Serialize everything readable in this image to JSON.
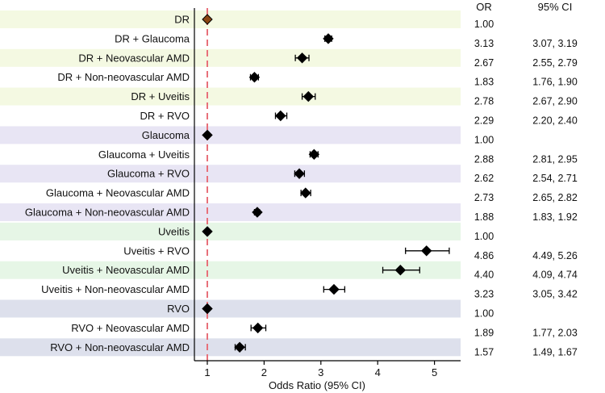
{
  "chart_data": {
    "type": "forest",
    "xlabel": "Odds Ratio (95% CI)",
    "xlim": [
      0.8,
      5.5
    ],
    "xticks": [
      1,
      2,
      3,
      4,
      5
    ],
    "reference_line": 1,
    "column_headers": {
      "or": "OR",
      "ci": "95% CI"
    },
    "group_colors": {
      "DR": "#f4f9e2",
      "Glaucoma": "#e8e5f4",
      "Uveitis": "#e6f6e6",
      "RVO": "#dde0ec"
    },
    "marker_color": "#000000",
    "reference_first_marker_color": "#8b4513",
    "reference_line_color": "#e8707a",
    "rows": [
      {
        "label": "DR",
        "group": "DR",
        "shaded": true,
        "or": 1.0,
        "lo": null,
        "hi": null,
        "or_text": "1.00",
        "ci_text": ""
      },
      {
        "label": "DR + Glaucoma",
        "group": "DR",
        "shaded": false,
        "or": 3.13,
        "lo": 3.07,
        "hi": 3.19,
        "or_text": "3.13",
        "ci_text": "3.07, 3.19"
      },
      {
        "label": "DR + Neovascular AMD",
        "group": "DR",
        "shaded": true,
        "or": 2.67,
        "lo": 2.55,
        "hi": 2.79,
        "or_text": "2.67",
        "ci_text": "2.55, 2.79"
      },
      {
        "label": "DR + Non-neovascular AMD",
        "group": "DR",
        "shaded": false,
        "or": 1.83,
        "lo": 1.76,
        "hi": 1.9,
        "or_text": "1.83",
        "ci_text": "1.76, 1.90"
      },
      {
        "label": "DR + Uveitis",
        "group": "DR",
        "shaded": true,
        "or": 2.78,
        "lo": 2.67,
        "hi": 2.9,
        "or_text": "2.78",
        "ci_text": "2.67, 2.90"
      },
      {
        "label": "DR + RVO",
        "group": "DR",
        "shaded": false,
        "or": 2.29,
        "lo": 2.2,
        "hi": 2.4,
        "or_text": "2.29",
        "ci_text": "2.20, 2.40"
      },
      {
        "label": "Glaucoma",
        "group": "Glaucoma",
        "shaded": true,
        "or": 1.0,
        "lo": null,
        "hi": null,
        "or_text": "1.00",
        "ci_text": ""
      },
      {
        "label": "Glaucoma + Uveitis",
        "group": "Glaucoma",
        "shaded": false,
        "or": 2.88,
        "lo": 2.81,
        "hi": 2.95,
        "or_text": "2.88",
        "ci_text": "2.81, 2.95"
      },
      {
        "label": "Glaucoma + RVO",
        "group": "Glaucoma",
        "shaded": true,
        "or": 2.62,
        "lo": 2.54,
        "hi": 2.71,
        "or_text": "2.62",
        "ci_text": "2.54, 2.71"
      },
      {
        "label": "Glaucoma + Neovascular AMD",
        "group": "Glaucoma",
        "shaded": false,
        "or": 2.73,
        "lo": 2.65,
        "hi": 2.82,
        "or_text": "2.73",
        "ci_text": "2.65, 2.82"
      },
      {
        "label": "Glaucoma + Non-neovascular AMD",
        "group": "Glaucoma",
        "shaded": true,
        "or": 1.88,
        "lo": 1.83,
        "hi": 1.92,
        "or_text": "1.88",
        "ci_text": "1.83, 1.92"
      },
      {
        "label": "Uveitis",
        "group": "Uveitis",
        "shaded": true,
        "or": 1.0,
        "lo": null,
        "hi": null,
        "or_text": "1.00",
        "ci_text": ""
      },
      {
        "label": "Uveitis + RVO",
        "group": "Uveitis",
        "shaded": false,
        "or": 4.86,
        "lo": 4.49,
        "hi": 5.26,
        "or_text": "4.86",
        "ci_text": "4.49, 5.26"
      },
      {
        "label": "Uveitis + Neovascular AMD",
        "group": "Uveitis",
        "shaded": true,
        "or": 4.4,
        "lo": 4.09,
        "hi": 4.74,
        "or_text": "4.40",
        "ci_text": "4.09, 4.74"
      },
      {
        "label": "Uveitis + Non-neovascular AMD",
        "group": "Uveitis",
        "shaded": false,
        "or": 3.23,
        "lo": 3.05,
        "hi": 3.42,
        "or_text": "3.23",
        "ci_text": "3.05, 3.42"
      },
      {
        "label": "RVO",
        "group": "RVO",
        "shaded": true,
        "or": 1.0,
        "lo": null,
        "hi": null,
        "or_text": "1.00",
        "ci_text": ""
      },
      {
        "label": "RVO + Neovascular AMD",
        "group": "RVO",
        "shaded": false,
        "or": 1.89,
        "lo": 1.77,
        "hi": 2.03,
        "or_text": "1.89",
        "ci_text": "1.77, 2.03"
      },
      {
        "label": "RVO + Non-neovascular AMD",
        "group": "RVO",
        "shaded": true,
        "or": 1.57,
        "lo": 1.49,
        "hi": 1.67,
        "or_text": "1.57",
        "ci_text": "1.49, 1.67"
      }
    ]
  }
}
